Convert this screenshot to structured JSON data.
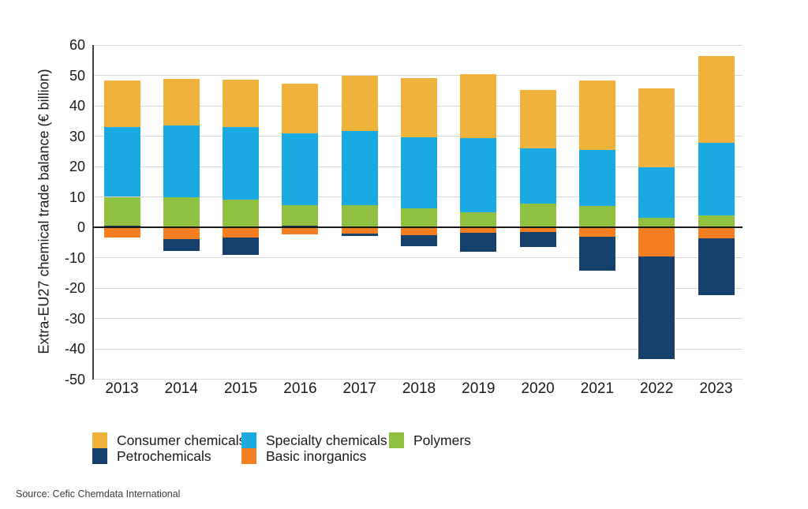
{
  "chart_data": {
    "type": "bar",
    "stacked": true,
    "categories": [
      "2013",
      "2014",
      "2015",
      "2016",
      "2017",
      "2018",
      "2019",
      "2020",
      "2021",
      "2022",
      "2023"
    ],
    "series": [
      {
        "name": "Consumer chemicals",
        "color": "#EFB23C",
        "values": [
          15.2,
          15.4,
          15.8,
          16.2,
          18.2,
          19.5,
          21.1,
          19.2,
          22.7,
          25.8,
          28.5
        ]
      },
      {
        "name": "Specialty chemicals",
        "color": "#1BA9E2",
        "values": [
          23.1,
          23.7,
          23.7,
          23.6,
          24.4,
          23.3,
          24.3,
          18.2,
          18.4,
          16.8,
          24.0
        ]
      },
      {
        "name": "Polymers",
        "color": "#90C140",
        "values": [
          9.4,
          9.8,
          9.2,
          6.9,
          7.4,
          6.3,
          5.0,
          7.8,
          7.1,
          3.0,
          3.9
        ]
      },
      {
        "name": "Petrochemicals",
        "color": "#14406B",
        "values": [
          0.6,
          -4.1,
          -5.7,
          0.5,
          -0.8,
          -3.7,
          -6.3,
          -4.9,
          -11.2,
          -33.8,
          -18.7
        ]
      },
      {
        "name": "Basic inorganics",
        "color": "#F47E20",
        "values": [
          -3.4,
          -3.8,
          -3.5,
          -2.4,
          -2.1,
          -2.5,
          -1.8,
          -1.6,
          -3.1,
          -9.6,
          -3.7
        ]
      }
    ],
    "xlabel": "",
    "ylabel": "Extra-EU27 chemical trade balance (€ billion)",
    "ylim": [
      -50,
      60
    ],
    "y_ticks": [
      60,
      50,
      40,
      30,
      20,
      10,
      0,
      -10,
      -20,
      -30,
      -40,
      -50
    ],
    "grid": true,
    "zero_line": true,
    "legend_position": "bottom-left"
  },
  "colors": {
    "gridline": "#d9d9d9",
    "zero_line": "#1a1a1a",
    "axis_line": "#404040",
    "text": "#1a1a1a"
  },
  "source_note": "Source: Cefic Chemdata International"
}
